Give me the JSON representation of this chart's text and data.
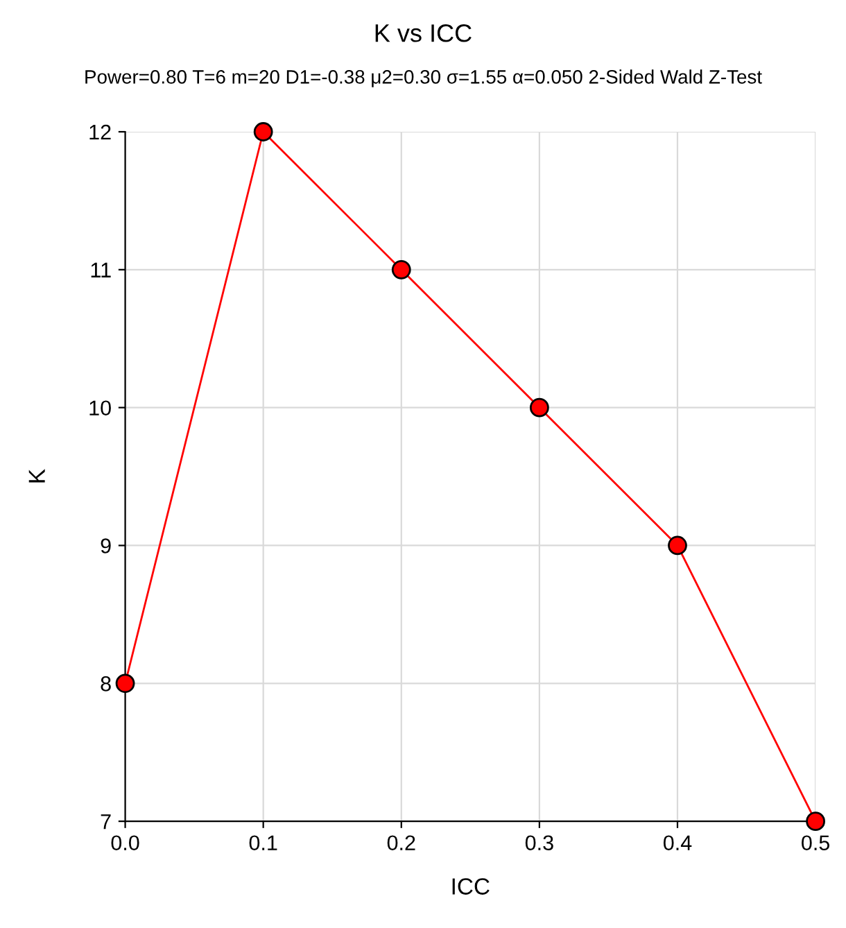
{
  "chart_data": {
    "type": "line",
    "title": "K vs ICC",
    "subtitle": "Power=0.80 T=6 m=20 D1=-0.38 μ2=0.30 σ=1.55 α=0.050 2-Sided Wald Z-Test",
    "xlabel": "ICC",
    "ylabel": "K",
    "x": [
      0.0,
      0.1,
      0.2,
      0.3,
      0.4,
      0.5
    ],
    "series": [
      {
        "color": "#ff0000",
        "values": [
          8,
          12,
          11,
          10,
          9,
          7
        ]
      }
    ],
    "xlim": [
      0.0,
      0.5
    ],
    "xticks": [
      {
        "value": 0.0,
        "label": "0.0"
      },
      {
        "value": 0.1,
        "label": "0.1"
      },
      {
        "value": 0.2,
        "label": "0.2"
      },
      {
        "value": 0.3,
        "label": "0.3"
      },
      {
        "value": 0.4,
        "label": "0.4"
      },
      {
        "value": 0.5,
        "label": "0.5"
      }
    ],
    "ylim": [
      7,
      12
    ],
    "yticks": [
      7,
      8,
      9,
      10,
      11,
      12
    ],
    "grid": true,
    "marker": "circle",
    "line_style": "solid"
  }
}
